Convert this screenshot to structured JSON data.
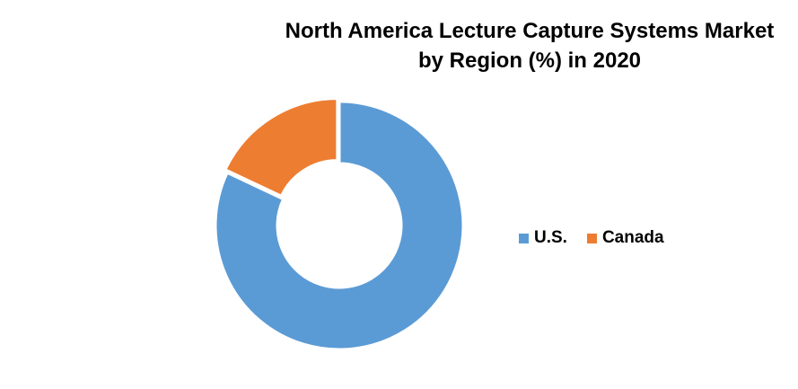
{
  "chart_data": {
    "type": "pie",
    "variant": "donut",
    "title_lines": [
      "North America Lecture Capture Systems Market",
      "by Region (%) in 2020"
    ],
    "categories": [
      "U.S.",
      "Canada"
    ],
    "values": [
      82,
      18
    ],
    "colors": [
      "#5B9BD5",
      "#ED7D31"
    ],
    "legend_position": "right",
    "data_labels": false
  }
}
